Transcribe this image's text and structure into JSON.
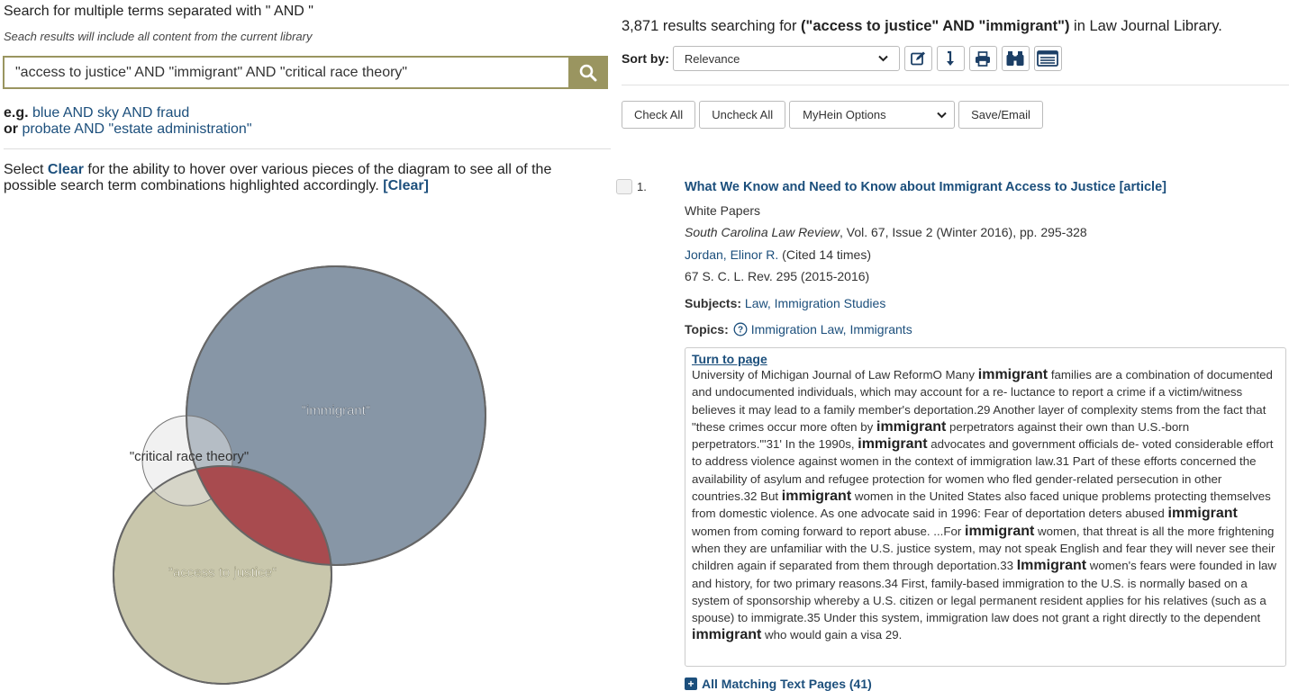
{
  "search_panel": {
    "heading": "Search for multiple terms separated with \" AND \"",
    "subheading": "Seach results will include all content from the current library",
    "query": "\"access to justice\" AND \"immigrant\" AND \"critical race theory\"",
    "examples": {
      "eg_label": "e.g.",
      "example1": "blue AND sky AND fraud",
      "or_label": "or",
      "example2": "probate AND \"estate administration\""
    },
    "instructions": {
      "prefix": "Select ",
      "clear_word": "Clear",
      "suffix": " for the ability to hover over various pieces of the diagram to see all of the possible search term combinations highlighted accordingly.",
      "clear_link": "[Clear]"
    }
  },
  "venn": {
    "labels": {
      "immigrant": "\"immigrant\"",
      "critical_race_theory": "\"critical race theory\"",
      "access_to_justice": "\"access to justice\""
    },
    "colors": {
      "immigrant": "#8796a6",
      "critical_race_theory": "#e3e3e3",
      "access_to_justice": "#c9c7ac",
      "intersection": "#a84b4f"
    }
  },
  "results": {
    "count": "3,871",
    "summary_mid": " results searching for ",
    "query_display": "(\"access to justice\" AND \"immigrant\")",
    "summary_end": " in Law Journal Library.",
    "sort_label": "Sort by:",
    "sort_value": "Relevance",
    "tools": [
      "edit-icon",
      "sort-direction-icon",
      "print-icon",
      "binoculars-icon",
      "list-view-icon"
    ],
    "check_all": "Check All",
    "uncheck_all": "Uncheck All",
    "myhein_options": "MyHein Options",
    "save_email": "Save/Email",
    "items": [
      {
        "number": "1.",
        "title": "What We Know and Need to Know about Immigrant Access to Justice [article]",
        "type": "White Papers",
        "journal": "South Carolina Law Review",
        "journal_details": ", Vol. 67, Issue 2 (Winter 2016), pp. 295-328",
        "author": "Jordan, Elinor R.",
        "cited": " (Cited 14 times)",
        "citation": "67 S. C. L. Rev. 295 (2015-2016)",
        "subjects_label": "Subjects:",
        "subjects": "Law, Immigration Studies",
        "topics_label": "Topics:",
        "topics": "Immigration Law, Immigrants",
        "turn_to_page": "Turn to page",
        "snippet": [
          "University of Michigan Journal of Law ReformO Many ",
          "immigrant",
          " families are a combination of documented and undocumented individuals, which may account for a re- luctance to report a crime if a victim/witness believes it may lead to a family member's deportation.29 Another layer of complexity stems from the fact that \"these crimes occur more often by ",
          "immigrant",
          " perpetrators against their own than U.S.-born perpetrators.\"'31' In the 1990s, ",
          "immigrant",
          " advocates and government officials de- voted considerable effort to address violence against women in the context of immigration law.31 Part of these efforts concerned the availability of asylum and refugee protection for women who fled gender-related persecution in other countries.32 But ",
          "immigrant",
          " women in the United States also faced unique problems protecting themselves from domestic violence. As one advocate said in 1996: Fear of deportation deters abused ",
          "immigrant",
          " women from coming forward to report abuse. ...For ",
          "immigrant",
          " women, that threat is all the more frightening when they are unfamiliar with the U.S. justice system, may not speak English and fear they will never see their children again if separated from them through deportation.33 ",
          "Immigrant",
          " women's fears were founded in law and history, for two primary reasons.34 First, family-based immigration to the U.S. is normally based on a system of sponsorship whereby a U.S. citizen or legal permanent resident applies for his relatives (such as a spouse) to immigrate.35 Under this system, immigration law does not grant a right directly to the dependent ",
          "immigrant",
          " who would gain a visa 29."
        ],
        "all_matching": "All Matching Text Pages (41)"
      }
    ]
  }
}
